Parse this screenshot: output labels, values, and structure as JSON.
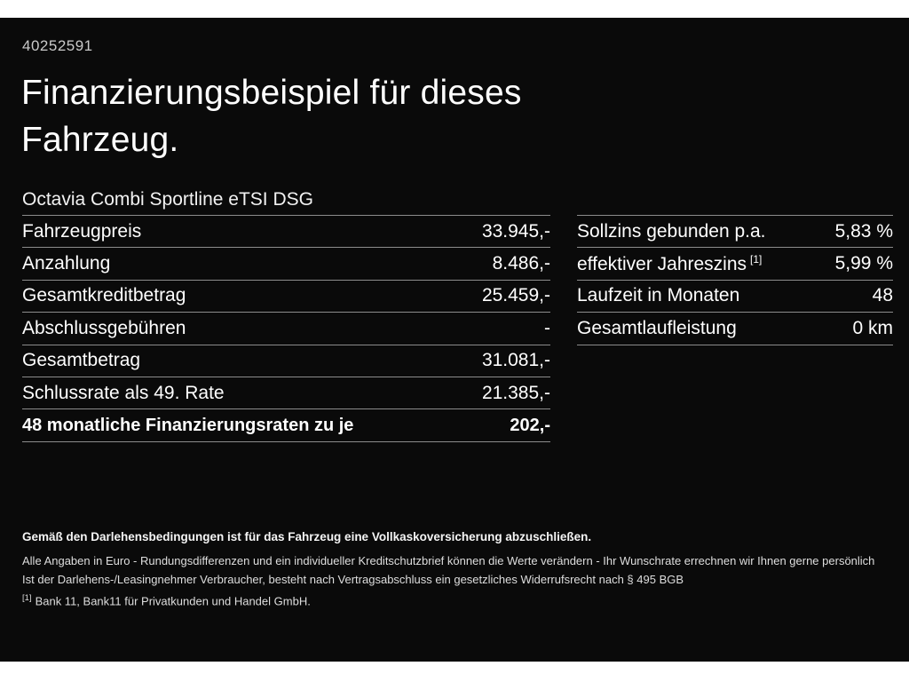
{
  "meta": {
    "id_number": "40252591"
  },
  "header": {
    "title_line1": "Finanzierungsbeispiel für dieses",
    "title_line2": "Fahrzeug.",
    "subtitle": "Octavia Combi Sportline eTSI DSG"
  },
  "finance_left": {
    "rows": [
      {
        "label": "Fahrzeugpreis",
        "value": "33.945,-"
      },
      {
        "label": "Anzahlung",
        "value": "8.486,-"
      },
      {
        "label": "Gesamtkreditbetrag",
        "value": "25.459,-"
      },
      {
        "label": "Abschlussgebühren",
        "value": "-"
      },
      {
        "label": "Gesamtbetrag",
        "value": "31.081,-"
      },
      {
        "label": "Schlussrate als 49. Rate",
        "value": "21.385,-"
      },
      {
        "label": "48 monatliche Finanzierungsraten zu je",
        "value": "202,-"
      }
    ]
  },
  "finance_right": {
    "rows": [
      {
        "label": "Sollzins gebunden p.a.",
        "sup": "",
        "value": "5,83 %"
      },
      {
        "label": "effektiver Jahreszins",
        "sup": "[1]",
        "value": "5,99 %"
      },
      {
        "label": "Laufzeit in Monaten",
        "sup": "",
        "value": "48"
      },
      {
        "label": "Gesamtlaufleistung",
        "sup": "",
        "value": "0 km"
      }
    ]
  },
  "footer": {
    "insurance_note": "Gemäß den Darlehensbedingungen ist für das Fahrzeug eine Vollkaskoversicherung abzuschließen.",
    "disclaimer_1": "Alle Angaben in Euro - Rundungsdifferenzen und ein individueller Kreditschutzbrief können die Werte verändern - Ihr Wunschrate errechnen wir Ihnen gerne persönlich",
    "disclaimer_2": "Ist der Darlehens-/Leasingnehmer Verbraucher, besteht nach Vertragsabschluss ein gesetzliches Widerrufsrecht nach § 495 BGB",
    "footnote_marker": "[1]",
    "footnote_text": "Bank 11, Bank11 für Privatkunden und Handel GmbH."
  },
  "colors": {
    "background": "#0a0a0a",
    "text_primary": "#ffffff",
    "divider": "#8c8c8c"
  }
}
